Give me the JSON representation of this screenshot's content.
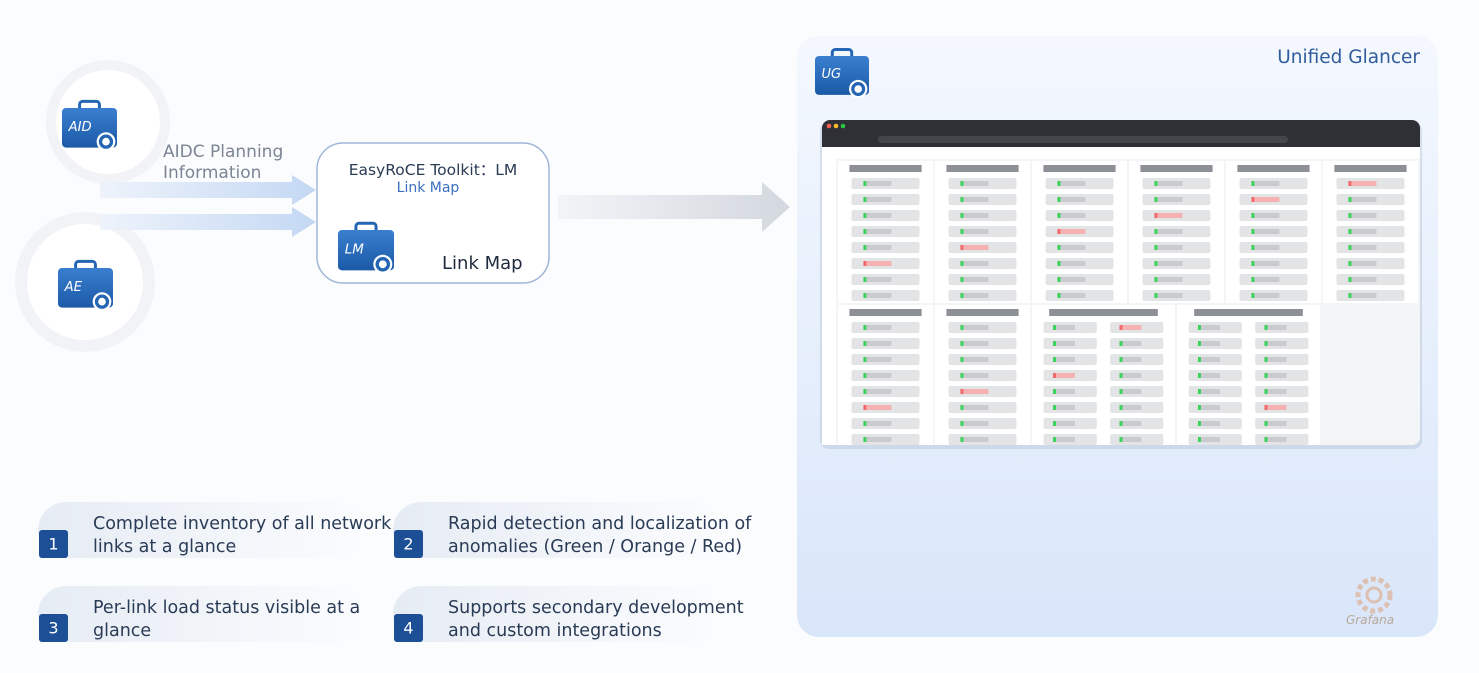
{
  "sources": [
    {
      "icon": "AID"
    },
    {
      "icon": "AE"
    }
  ],
  "input_label": "AIDC Planning Information",
  "toolkit": {
    "title": "EasyRoCE Toolkit：LM",
    "subtitle": "Link Map",
    "icon": "LM",
    "name": "Link Map"
  },
  "glancer": {
    "title": "Unified Glancer",
    "icon": "UG",
    "watermark": "Grafana"
  },
  "features": [
    {
      "number": "1",
      "text": "Complete inventory of all network links at a glance"
    },
    {
      "number": "2",
      "text": "Rapid detection and localization of anomalies (Green / Orange / Red)"
    },
    {
      "number": "3",
      "text": "Per-link load status visible at a glance"
    },
    {
      "number": "4",
      "text": "Supports secondary development and custom integrations"
    }
  ]
}
